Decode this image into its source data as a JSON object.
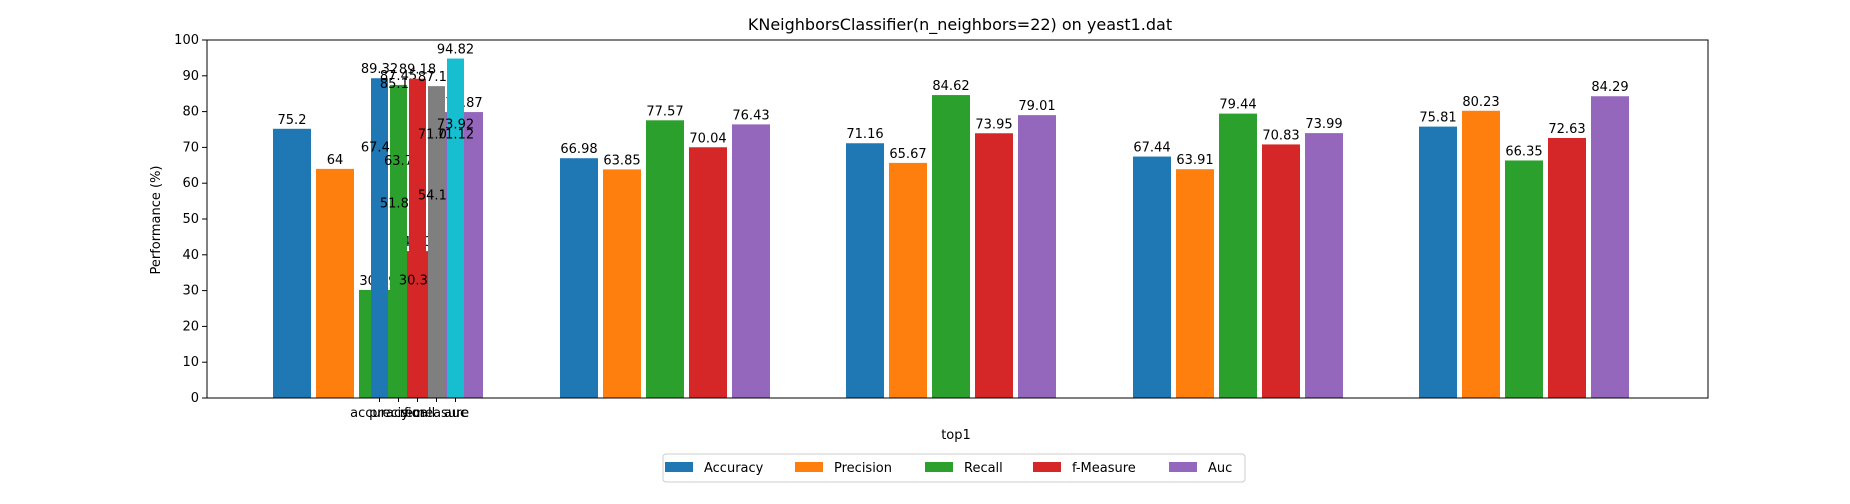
{
  "chart_data": {
    "type": "bar",
    "title": "KNeighborsClassifier(n_neighbors=22) on yeast1.dat",
    "xlabel": "top1",
    "ylabel": "Performance (%)",
    "ylim": [
      0,
      100
    ],
    "y_ticks": [
      "0",
      "10",
      "20",
      "30",
      "40",
      "50",
      "60",
      "70",
      "80",
      "90",
      "100"
    ],
    "x_tick_labels": [
      "accuracy",
      "precision",
      "recall",
      "f-measure",
      "auc"
    ],
    "grid": false,
    "legend_position": "bottom-center",
    "colors": {
      "accuracy": "#1f77b4",
      "precision": "#ff7f0e",
      "recall": "#2ca02c",
      "f_measure": "#d62728",
      "auc": "#9467bd",
      "gray": "#7f7f7f",
      "cyan": "#17becf"
    },
    "series": [
      {
        "name": "Accuracy",
        "color": "#1f77b4",
        "values": [
          75.2,
          66.98,
          71.16,
          67.44,
          75.81
        ]
      },
      {
        "name": "Precision",
        "color": "#ff7f0e",
        "values": [
          64,
          63.85,
          65.67,
          63.91,
          80.23
        ]
      },
      {
        "name": "Recall",
        "color": "#2ca02c",
        "values": [
          30.19,
          77.57,
          84.62,
          79.44,
          66.35
        ]
      },
      {
        "name": "f-Measure",
        "color": "#d62728",
        "values": [
          41.03,
          70.04,
          73.95,
          70.83,
          72.63
        ]
      },
      {
        "name": "Auc",
        "color": "#9467bd",
        "values": [
          79.87,
          76.43,
          79.01,
          73.99,
          84.29
        ]
      }
    ],
    "overlay_bars": [
      {
        "color": "#1f77b4",
        "values": [
          67.44,
          89.32
        ]
      },
      {
        "color": "#2ca02c",
        "values": [
          51.84,
          63.7,
          85.14,
          87.45
        ]
      },
      {
        "color": "#d62728",
        "values": [
          30.37,
          89.18
        ]
      },
      {
        "color": "#7f7f7f",
        "values": [
          54.11,
          71.07,
          87.11
        ]
      },
      {
        "color": "#17becf",
        "values": [
          71.12,
          73.92,
          94.82
        ]
      }
    ]
  }
}
